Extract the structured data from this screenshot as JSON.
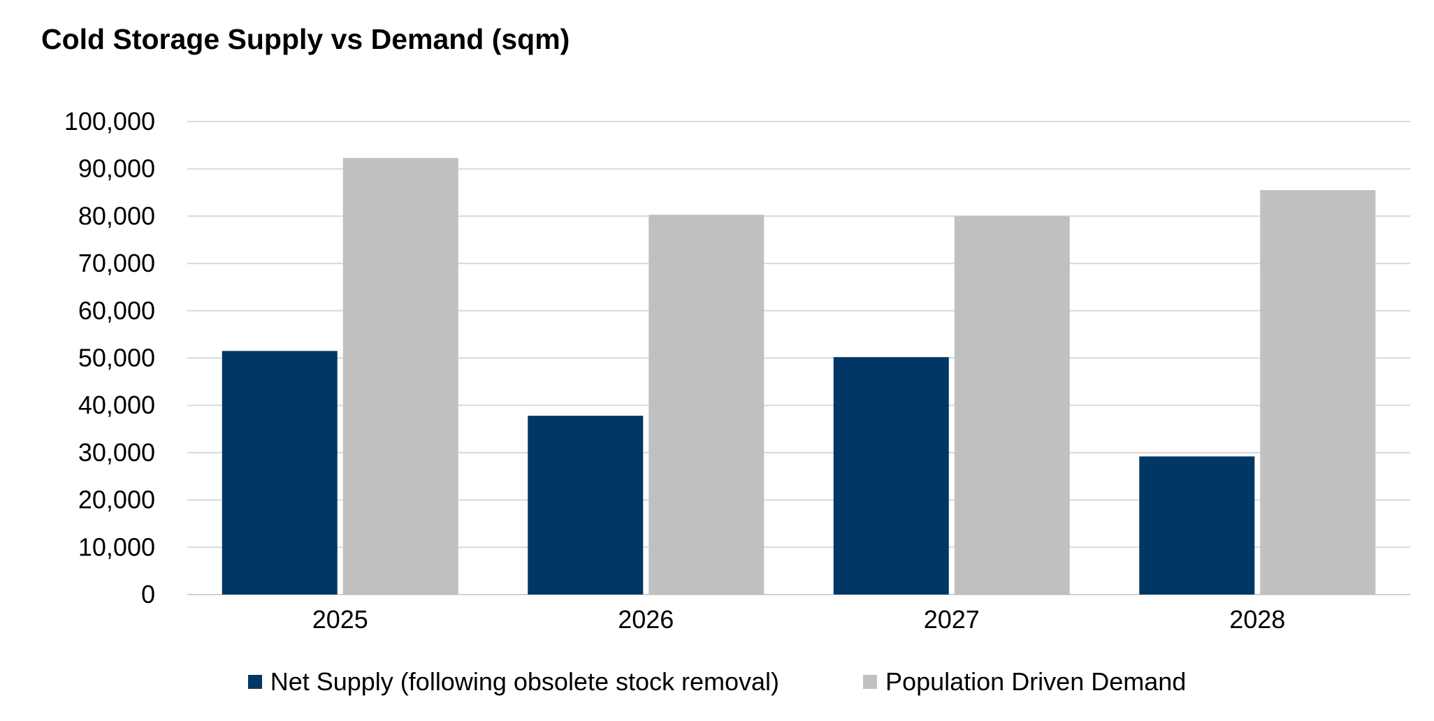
{
  "chart_data": {
    "type": "bar",
    "title": "Cold Storage Supply vs Demand (sqm)",
    "categories": [
      "2025",
      "2026",
      "2027",
      "2028"
    ],
    "series": [
      {
        "name": "Net Supply (following obsolete stock removal)",
        "color": "#003764",
        "values": [
          51500,
          37800,
          50200,
          29200
        ]
      },
      {
        "name": "Population Driven Demand",
        "color": "#c0c0c0",
        "values": [
          92300,
          80300,
          80000,
          85500
        ]
      }
    ],
    "ylim": [
      0,
      100000
    ],
    "yticks": [
      0,
      10000,
      20000,
      30000,
      40000,
      50000,
      60000,
      70000,
      80000,
      90000,
      100000
    ],
    "ytick_labels": [
      "0",
      "10,000",
      "20,000",
      "30,000",
      "40,000",
      "50,000",
      "60,000",
      "70,000",
      "80,000",
      "90,000",
      "100,000"
    ],
    "grid": true,
    "grid_color": "#d9d9d9",
    "legend_position": "bottom"
  }
}
